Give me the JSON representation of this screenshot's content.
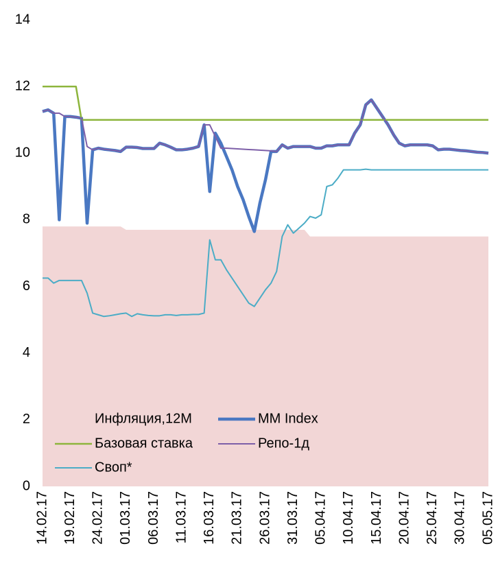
{
  "chart_data": {
    "type": "line",
    "categories": [
      "14.02.17",
      null,
      null,
      null,
      null,
      "19.02.17",
      null,
      null,
      null,
      null,
      "24.02.17",
      null,
      null,
      null,
      null,
      "01.03.17",
      null,
      null,
      null,
      null,
      "06.03.17",
      null,
      null,
      null,
      null,
      "11.03.17",
      null,
      null,
      null,
      null,
      "16.03.17",
      null,
      null,
      null,
      null,
      "21.03.17",
      null,
      null,
      null,
      null,
      "26.03.17",
      null,
      null,
      null,
      null,
      "31.03.17",
      null,
      null,
      null,
      null,
      "05.04.17",
      null,
      null,
      null,
      null,
      "10.04.17",
      null,
      null,
      null,
      null,
      "15.04.17",
      null,
      null,
      null,
      null,
      "20.04.17",
      null,
      null,
      null,
      null,
      "25.04.17",
      null,
      null,
      null,
      null,
      "30.04.17",
      null,
      null,
      null,
      null,
      "05.05.17"
    ],
    "series": [
      {
        "name": "Инфляция,12М",
        "color": "#f2d6d6",
        "style": "area",
        "values": [
          7.8,
          7.8,
          7.8,
          7.8,
          7.8,
          7.8,
          7.8,
          7.8,
          7.8,
          7.8,
          7.8,
          7.8,
          7.8,
          7.8,
          7.8,
          7.7,
          7.7,
          7.7,
          7.7,
          7.7,
          7.7,
          7.7,
          7.7,
          7.7,
          7.7,
          7.7,
          7.7,
          7.7,
          7.7,
          7.7,
          7.7,
          7.7,
          7.7,
          7.7,
          7.7,
          7.7,
          7.7,
          7.7,
          7.7,
          7.7,
          7.7,
          7.7,
          7.7,
          7.7,
          7.7,
          7.7,
          7.7,
          7.7,
          7.5,
          7.5,
          7.5,
          7.5,
          7.5,
          7.5,
          7.5,
          7.5,
          7.5,
          7.5,
          7.5,
          7.5,
          7.5,
          7.5,
          7.5,
          7.5,
          7.5,
          7.5,
          7.5,
          7.5,
          7.5,
          7.5,
          7.5,
          7.5,
          7.5,
          7.5,
          7.5,
          7.5,
          7.5,
          7.5,
          7.5,
          7.5,
          7.5
        ]
      },
      {
        "name": "MM Index",
        "color": "#4a78c2",
        "style": "line",
        "linewidth": 4.5,
        "values": [
          11.25,
          11.3,
          11.2,
          8.0,
          11.1,
          11.1,
          11.08,
          11.05,
          7.9,
          10.1,
          10.15,
          10.12,
          10.1,
          10.08,
          10.05,
          10.18,
          10.18,
          10.17,
          10.14,
          10.14,
          10.14,
          10.3,
          10.25,
          10.18,
          10.1,
          10.1,
          10.12,
          10.15,
          10.2,
          10.85,
          8.85,
          10.6,
          10.3,
          9.9,
          9.5,
          9.0,
          8.6,
          8.1,
          7.65,
          8.5,
          9.2,
          10.05,
          10.05,
          10.25,
          10.15,
          10.2,
          10.2,
          10.2,
          10.2,
          10.15,
          10.15,
          10.22,
          10.22,
          10.25,
          10.25,
          10.25,
          10.6,
          10.85,
          11.45,
          11.6,
          11.35,
          11.1,
          10.85,
          10.55,
          10.3,
          10.22,
          10.25,
          10.25,
          10.25,
          10.25,
          10.22,
          10.1,
          10.12,
          10.12,
          10.1,
          10.08,
          10.07,
          10.05,
          10.03,
          10.02,
          10.0
        ]
      },
      {
        "name": "Базовая ставка",
        "color": "#8db53c",
        "style": "line",
        "linewidth": 2.5,
        "values": [
          12,
          12,
          12,
          12,
          12,
          12,
          12,
          11,
          11,
          11,
          11,
          11,
          11,
          11,
          11,
          11,
          11,
          11,
          11,
          11,
          11,
          11,
          11,
          11,
          11,
          11,
          11,
          11,
          11,
          11,
          11,
          11,
          11,
          11,
          11,
          11,
          11,
          11,
          11,
          11,
          11,
          11,
          11,
          11,
          11,
          11,
          11,
          11,
          11,
          11,
          11,
          11,
          11,
          11,
          11,
          11,
          11,
          11,
          11,
          11,
          11,
          11,
          11,
          11,
          11,
          11,
          11,
          11,
          11,
          11,
          11,
          11,
          11,
          11,
          11,
          11,
          11,
          11,
          11,
          11,
          11
        ]
      },
      {
        "name": "Репо-1д",
        "color": "#7d5fa8",
        "style": "line",
        "linewidth": 2,
        "values": [
          11.25,
          11.3,
          11.2,
          11.2,
          11.1,
          11.1,
          11.08,
          11.05,
          10.2,
          10.1,
          10.15,
          10.12,
          10.1,
          10.08,
          10.05,
          10.18,
          10.18,
          10.17,
          10.14,
          10.14,
          10.14,
          10.3,
          10.25,
          10.18,
          10.1,
          10.1,
          10.12,
          10.15,
          10.2,
          10.85,
          10.85,
          10.5,
          10.15,
          10.15,
          10.14,
          10.13,
          10.12,
          10.11,
          10.1,
          10.09,
          10.08,
          10.07,
          10.05,
          10.25,
          10.15,
          10.2,
          10.2,
          10.2,
          10.2,
          10.15,
          10.15,
          10.22,
          10.22,
          10.25,
          10.25,
          10.25,
          10.6,
          10.85,
          11.45,
          11.6,
          11.35,
          11.1,
          10.85,
          10.55,
          10.3,
          10.22,
          10.25,
          10.25,
          10.25,
          10.25,
          10.22,
          10.1,
          10.12,
          10.12,
          10.1,
          10.08,
          10.07,
          10.05,
          10.03,
          10.02,
          10.0
        ]
      },
      {
        "name": "Своп*",
        "color": "#4bacc6",
        "style": "line",
        "linewidth": 2,
        "values": [
          6.25,
          6.25,
          6.1,
          6.18,
          6.18,
          6.18,
          6.18,
          6.18,
          5.8,
          5.2,
          5.15,
          5.1,
          5.12,
          5.15,
          5.18,
          5.2,
          5.1,
          5.18,
          5.15,
          5.13,
          5.12,
          5.12,
          5.15,
          5.15,
          5.13,
          5.15,
          5.15,
          5.16,
          5.16,
          5.2,
          7.4,
          6.8,
          6.8,
          6.5,
          6.25,
          6.0,
          5.75,
          5.5,
          5.4,
          5.65,
          5.9,
          6.1,
          6.45,
          7.5,
          7.85,
          7.6,
          7.75,
          7.9,
          8.1,
          8.05,
          8.15,
          9.0,
          9.05,
          9.25,
          9.5,
          9.5,
          9.5,
          9.5,
          9.52,
          9.5,
          9.5,
          9.5,
          9.5,
          9.5,
          9.5,
          9.5,
          9.5,
          9.5,
          9.5,
          9.5,
          9.5,
          9.5,
          9.5,
          9.5,
          9.5,
          9.5,
          9.5,
          9.5,
          9.5,
          9.5,
          9.5
        ]
      }
    ],
    "ylim": [
      0,
      14
    ],
    "yticks": [
      0,
      2,
      4,
      6,
      8,
      10,
      12,
      14
    ],
    "grid": false,
    "legend": "lower left"
  }
}
